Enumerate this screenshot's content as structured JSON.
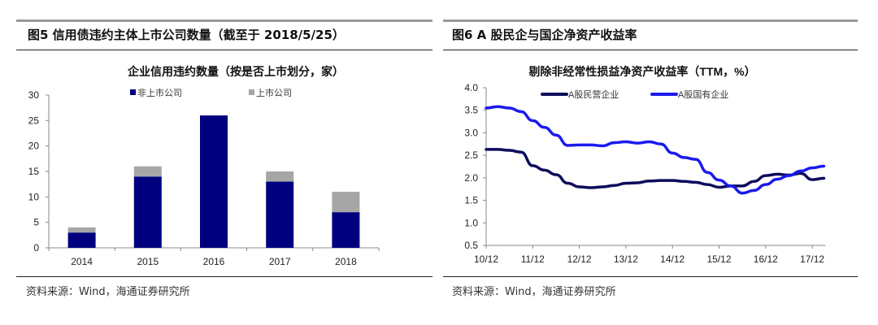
{
  "left": {
    "figure_title": "图5  信用债违约主体上市公司数量（截至于 2018/5/25）",
    "source": "资料来源：Wind，海通证券研究所",
    "chart_data": {
      "type": "bar",
      "stacked": true,
      "title": "企业信用违约数量（按是否上市划分，家）",
      "categories": [
        "2014",
        "2015",
        "2016",
        "2017",
        "2018"
      ],
      "series": [
        {
          "name": "非上市公司",
          "color": "#00007f",
          "values": [
            3,
            14,
            26,
            13,
            7
          ]
        },
        {
          "name": "上市公司",
          "color": "#a6a6a6",
          "values": [
            1,
            2,
            0,
            2,
            4
          ]
        }
      ],
      "ylim": [
        0,
        30
      ],
      "yticks": [
        0,
        5,
        10,
        15,
        20,
        25,
        30
      ],
      "legend": "top"
    }
  },
  "right": {
    "figure_title": "图6  A 股民企与国企净资产收益率",
    "source": "资料来源：Wind，海通证券研究所",
    "chart_data": {
      "type": "line",
      "title": "剔除非经常性损益净资产收益率（TTM，%）",
      "x": [
        "10/12",
        "11/03",
        "11/06",
        "11/09",
        "11/12",
        "12/03",
        "12/06",
        "12/09",
        "12/12",
        "13/03",
        "13/06",
        "13/09",
        "13/12",
        "14/03",
        "14/06",
        "14/09",
        "14/12",
        "15/03",
        "15/06",
        "15/09",
        "15/12",
        "16/03",
        "16/06",
        "16/09",
        "16/12",
        "17/03",
        "17/06",
        "17/09",
        "17/12",
        "18/03"
      ],
      "xticks": [
        "10/12",
        "11/12",
        "12/12",
        "13/12",
        "14/12",
        "15/12",
        "16/12",
        "17/12"
      ],
      "series": [
        {
          "name": "A股民营企业",
          "color": "#0c0c5c",
          "values": [
            2.63,
            2.63,
            2.61,
            2.57,
            2.27,
            2.17,
            2.07,
            1.88,
            1.8,
            1.78,
            1.8,
            1.83,
            1.88,
            1.89,
            1.93,
            1.94,
            1.94,
            1.92,
            1.9,
            1.85,
            1.79,
            1.82,
            1.82,
            1.92,
            2.05,
            2.08,
            2.06,
            2.1,
            1.96,
            1.99
          ]
        },
        {
          "name": "A股国有企业",
          "color": "#1a1aee",
          "values": [
            3.55,
            3.58,
            3.55,
            3.47,
            3.27,
            3.12,
            2.95,
            2.72,
            2.73,
            2.73,
            2.71,
            2.78,
            2.8,
            2.77,
            2.8,
            2.75,
            2.55,
            2.45,
            2.41,
            2.12,
            1.95,
            1.82,
            1.66,
            1.72,
            1.85,
            1.97,
            2.05,
            2.15,
            2.22,
            2.26
          ]
        }
      ],
      "ylim": [
        0.5,
        4.0
      ],
      "yticks": [
        "0.5",
        "1.0",
        "1.5",
        "2.0",
        "2.5",
        "3.0",
        "3.5",
        "4.0"
      ],
      "legend": "top"
    }
  }
}
